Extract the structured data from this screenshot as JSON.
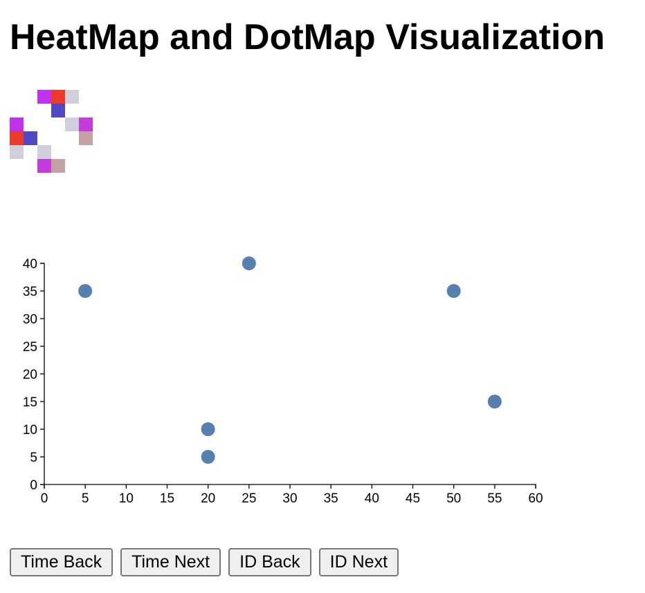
{
  "page": {
    "title": "HeatMap and DotMap Visualization"
  },
  "heatmap": {
    "cells": [
      {
        "col": 2,
        "row": 0,
        "color": "#c231ef"
      },
      {
        "col": 3,
        "row": 0,
        "color": "#ec3a2c"
      },
      {
        "col": 4,
        "row": 0,
        "color": "#d0d0dc"
      },
      {
        "col": 3,
        "row": 1,
        "color": "#5148c8"
      },
      {
        "col": 4,
        "row": 2,
        "color": "#d0d0dc"
      },
      {
        "col": 5,
        "row": 2,
        "color": "#c43ddc"
      },
      {
        "col": 0,
        "row": 2,
        "color": "#c232ec"
      },
      {
        "col": 0,
        "row": 3,
        "color": "#ec3a2c"
      },
      {
        "col": 1,
        "row": 3,
        "color": "#5148c8"
      },
      {
        "col": 5,
        "row": 3,
        "color": "#c4a2a2"
      },
      {
        "col": 0,
        "row": 4,
        "color": "#d0d0dc"
      },
      {
        "col": 2,
        "row": 4,
        "color": "#d0d0dc"
      },
      {
        "col": 2,
        "row": 5,
        "color": "#c43ddc"
      },
      {
        "col": 3,
        "row": 5,
        "color": "#c4a2a2"
      }
    ]
  },
  "chart_data": {
    "type": "scatter",
    "title": "",
    "xlabel": "",
    "ylabel": "",
    "xlim": [
      0,
      60
    ],
    "ylim": [
      0,
      40
    ],
    "xticks": [
      "0",
      "5",
      "10",
      "15",
      "20",
      "25",
      "30",
      "35",
      "40",
      "45",
      "50",
      "55",
      "60"
    ],
    "yticks": [
      "0",
      "5",
      "10",
      "15",
      "20",
      "25",
      "30",
      "35",
      "40"
    ],
    "grid": false,
    "point_color": "#5580b0",
    "points": [
      {
        "x": 5,
        "y": 35
      },
      {
        "x": 25,
        "y": 40
      },
      {
        "x": 50,
        "y": 35
      },
      {
        "x": 55,
        "y": 15
      },
      {
        "x": 20,
        "y": 10
      },
      {
        "x": 20,
        "y": 5
      }
    ]
  },
  "controls": {
    "time_back": "Time Back",
    "time_next": "Time Next",
    "id_back": "ID Back",
    "id_next": "ID Next"
  }
}
